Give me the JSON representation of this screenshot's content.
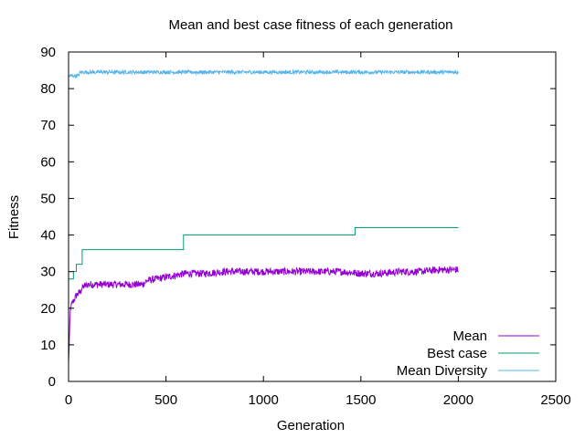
{
  "chart_data": {
    "type": "line",
    "title": "Mean and best case fitness of each generation",
    "xlabel": "Generation",
    "ylabel": "Fitness",
    "xlim": [
      0,
      2500
    ],
    "ylim": [
      0,
      90
    ],
    "xticks": [
      0,
      500,
      1000,
      1500,
      2000,
      2500
    ],
    "yticks": [
      0,
      10,
      20,
      30,
      40,
      50,
      60,
      70,
      80,
      90
    ],
    "grid": false,
    "legend_position": "bottom-right",
    "series": [
      {
        "name": "Mean",
        "color": "#9400d3",
        "style": "noisy",
        "x": [
          0,
          5,
          10,
          20,
          30,
          40,
          50,
          60,
          70,
          80,
          100,
          150,
          200,
          300,
          380,
          400,
          450,
          500,
          550,
          600,
          700,
          800,
          900,
          1000,
          1100,
          1200,
          1300,
          1400,
          1500,
          1600,
          1700,
          1800,
          1900,
          2000
        ],
        "values": [
          5,
          13,
          20,
          21.5,
          22.5,
          23.5,
          24,
          24.5,
          25.5,
          26,
          26.5,
          26.5,
          26.5,
          26.5,
          26.5,
          27.5,
          28,
          28.5,
          29,
          29.5,
          29.5,
          30,
          30,
          30,
          30,
          30,
          30,
          30,
          29.5,
          29.5,
          30,
          30,
          30.5,
          30.5
        ],
        "noise": [
          0,
          1,
          1,
          1,
          1,
          1,
          1,
          1,
          1,
          1,
          1,
          1,
          1,
          1,
          1,
          1,
          1,
          1,
          1,
          1,
          1,
          1,
          1,
          1,
          1,
          1,
          1,
          1,
          1,
          1,
          1,
          1,
          1,
          1
        ]
      },
      {
        "name": "Best case",
        "color": "#009e73",
        "style": "step",
        "x": [
          0,
          25,
          40,
          70,
          590,
          1470,
          2000
        ],
        "values": [
          28,
          30,
          32,
          36,
          40,
          42,
          42
        ]
      },
      {
        "name": "Mean Diversity",
        "color": "#56b4e9",
        "style": "noisy",
        "x": [
          0,
          50,
          60,
          2000
        ],
        "values": [
          83.5,
          83.5,
          84.5,
          84.5
        ],
        "noise": [
          0.5,
          0.5,
          0.5,
          0.5
        ]
      }
    ]
  }
}
